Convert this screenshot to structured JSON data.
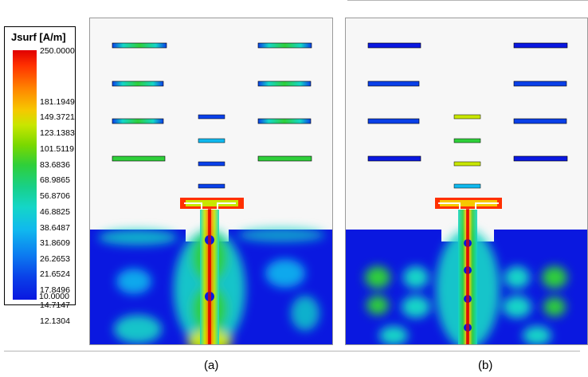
{
  "legend": {
    "title": "Jsurf [A/m]",
    "ticks": [
      "250.0000",
      "181.1949",
      "149.3721",
      "123.1383",
      "101.5119",
      "83.6836",
      "68.9865",
      "56.8706",
      "46.8825",
      "38.6487",
      "31.8609",
      "26.2653",
      "21.6524",
      "17.8496",
      "14.7147",
      "12.1304",
      "10.0000"
    ]
  },
  "panels": {
    "a": {
      "caption": "(a)"
    },
    "b": {
      "caption": "(b)"
    }
  },
  "colors": {
    "low": "#0a18e0",
    "mid": "#14d6c8",
    "high": "#e00000"
  }
}
